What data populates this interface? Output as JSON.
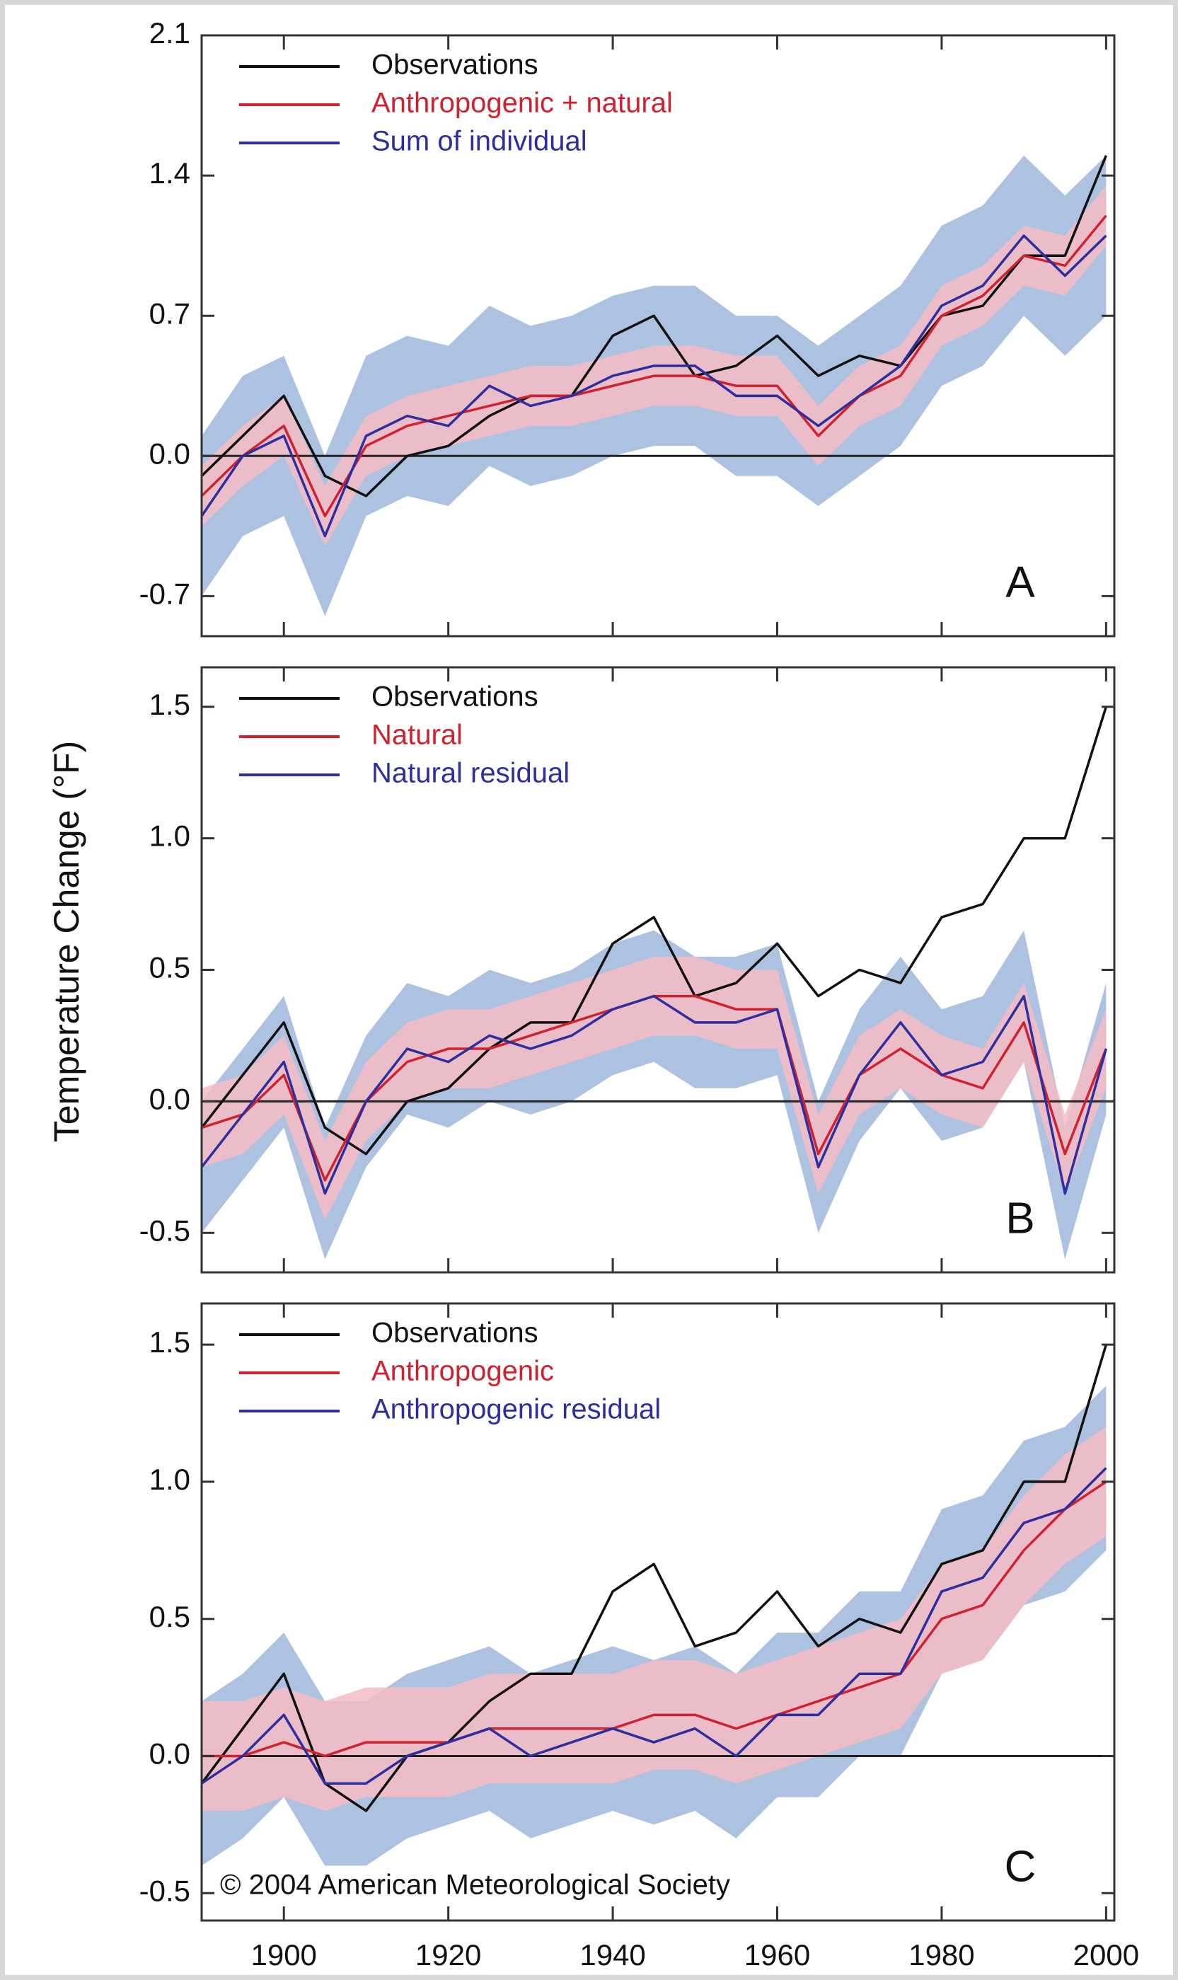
{
  "chart_data": [
    {
      "type": "line",
      "panel_label": "A",
      "x": [
        1890,
        1895,
        1900,
        1905,
        1910,
        1915,
        1920,
        1925,
        1930,
        1935,
        1940,
        1945,
        1950,
        1955,
        1960,
        1965,
        1970,
        1975,
        1980,
        1985,
        1990,
        1995,
        2000
      ],
      "xlim": [
        1890,
        2001
      ],
      "ylim": [
        -0.9,
        2.1
      ],
      "yticks": [
        -0.7,
        {
          "value": 0,
          "label": "0.0"
        },
        0.7,
        1.4,
        2.1
      ],
      "bands": [
        {
          "color": "#9fb6da",
          "lower": [
            -0.7,
            -0.4,
            -0.3,
            -0.8,
            -0.3,
            -0.2,
            -0.25,
            -0.05,
            -0.15,
            -0.1,
            0.0,
            0.05,
            0.05,
            -0.1,
            -0.1,
            -0.25,
            -0.1,
            0.05,
            0.35,
            0.45,
            0.7,
            0.5,
            0.7
          ],
          "upper": [
            0.1,
            0.4,
            0.5,
            0.0,
            0.5,
            0.6,
            0.55,
            0.75,
            0.65,
            0.7,
            0.8,
            0.85,
            0.85,
            0.7,
            0.7,
            0.55,
            0.7,
            0.85,
            1.15,
            1.25,
            1.5,
            1.3,
            1.5
          ]
        },
        {
          "color": "#f4bcc4",
          "lower": [
            -0.35,
            -0.15,
            0.0,
            -0.45,
            -0.1,
            0.0,
            0.05,
            0.1,
            0.15,
            0.15,
            0.2,
            0.25,
            0.25,
            0.2,
            0.2,
            -0.05,
            0.15,
            0.25,
            0.55,
            0.65,
            0.85,
            0.8,
            1.05
          ],
          "upper": [
            -0.05,
            0.15,
            0.3,
            -0.15,
            0.2,
            0.3,
            0.35,
            0.4,
            0.45,
            0.45,
            0.5,
            0.55,
            0.55,
            0.5,
            0.5,
            0.25,
            0.45,
            0.55,
            0.85,
            0.95,
            1.15,
            1.1,
            1.35
          ]
        }
      ],
      "series": [
        {
          "name": "Observations",
          "color": "#111111",
          "values": [
            -0.1,
            0.1,
            0.3,
            -0.1,
            -0.2,
            0.0,
            0.05,
            0.2,
            0.3,
            0.3,
            0.6,
            0.7,
            0.4,
            0.45,
            0.6,
            0.4,
            0.5,
            0.45,
            0.7,
            0.75,
            1.0,
            1.0,
            1.5
          ]
        },
        {
          "name": "Anthropogenic + natural",
          "color": "#d0222e",
          "values": [
            -0.2,
            0.0,
            0.15,
            -0.3,
            0.05,
            0.15,
            0.2,
            0.25,
            0.3,
            0.3,
            0.35,
            0.4,
            0.4,
            0.35,
            0.35,
            0.1,
            0.3,
            0.4,
            0.7,
            0.8,
            1.0,
            0.95,
            1.2
          ]
        },
        {
          "name": "Sum of individual",
          "color": "#2e2e9e",
          "values": [
            -0.3,
            0.0,
            0.1,
            -0.4,
            0.1,
            0.2,
            0.15,
            0.35,
            0.25,
            0.3,
            0.4,
            0.45,
            0.45,
            0.3,
            0.3,
            0.15,
            0.3,
            0.45,
            0.75,
            0.85,
            1.1,
            0.9,
            1.1
          ]
        }
      ]
    },
    {
      "type": "line",
      "panel_label": "B",
      "ylabel": "Temperature Change (°F)",
      "x": [
        1890,
        1895,
        1900,
        1905,
        1910,
        1915,
        1920,
        1925,
        1930,
        1935,
        1940,
        1945,
        1950,
        1955,
        1960,
        1965,
        1970,
        1975,
        1980,
        1985,
        1990,
        1995,
        2000
      ],
      "xlim": [
        1890,
        2001
      ],
      "ylim": [
        -0.65,
        1.65
      ],
      "yticks": [
        -0.5,
        {
          "value": 0,
          "label": "0.0"
        },
        0.5,
        {
          "value": 1,
          "label": "1.0"
        },
        1.5
      ],
      "bands": [
        {
          "color": "#9fb6da",
          "lower": [
            -0.5,
            -0.3,
            -0.1,
            -0.6,
            -0.25,
            -0.05,
            -0.1,
            0.0,
            -0.05,
            0.0,
            0.1,
            0.15,
            0.05,
            0.05,
            0.1,
            -0.5,
            -0.15,
            0.05,
            -0.15,
            -0.1,
            0.15,
            -0.6,
            -0.05
          ],
          "upper": [
            0.0,
            0.2,
            0.4,
            -0.1,
            0.25,
            0.45,
            0.4,
            0.5,
            0.45,
            0.5,
            0.6,
            0.65,
            0.55,
            0.55,
            0.6,
            0.0,
            0.35,
            0.55,
            0.35,
            0.4,
            0.65,
            -0.1,
            0.45
          ]
        },
        {
          "color": "#f4bcc4",
          "lower": [
            -0.25,
            -0.2,
            -0.05,
            -0.45,
            -0.15,
            0.0,
            0.05,
            0.05,
            0.1,
            0.15,
            0.2,
            0.25,
            0.25,
            0.2,
            0.2,
            -0.35,
            -0.05,
            0.05,
            -0.05,
            -0.1,
            0.15,
            -0.35,
            0.05
          ],
          "upper": [
            0.05,
            0.1,
            0.25,
            -0.15,
            0.15,
            0.3,
            0.35,
            0.35,
            0.4,
            0.45,
            0.5,
            0.55,
            0.55,
            0.5,
            0.5,
            -0.05,
            0.25,
            0.35,
            0.25,
            0.2,
            0.45,
            -0.05,
            0.35
          ]
        }
      ],
      "series": [
        {
          "name": "Observations",
          "color": "#111111",
          "values": [
            -0.1,
            0.1,
            0.3,
            -0.1,
            -0.2,
            0.0,
            0.05,
            0.2,
            0.3,
            0.3,
            0.6,
            0.7,
            0.4,
            0.45,
            0.6,
            0.4,
            0.5,
            0.45,
            0.7,
            0.75,
            1.0,
            1.0,
            1.5
          ]
        },
        {
          "name": "Natural",
          "color": "#d0222e",
          "values": [
            -0.1,
            -0.05,
            0.1,
            -0.3,
            0.0,
            0.15,
            0.2,
            0.2,
            0.25,
            0.3,
            0.35,
            0.4,
            0.4,
            0.35,
            0.35,
            -0.2,
            0.1,
            0.2,
            0.1,
            0.05,
            0.3,
            -0.2,
            0.2
          ]
        },
        {
          "name": "Natural residual",
          "color": "#2e2e9e",
          "values": [
            -0.25,
            -0.05,
            0.15,
            -0.35,
            0.0,
            0.2,
            0.15,
            0.25,
            0.2,
            0.25,
            0.35,
            0.4,
            0.3,
            0.3,
            0.35,
            -0.25,
            0.1,
            0.3,
            0.1,
            0.15,
            0.4,
            -0.35,
            0.2
          ]
        }
      ]
    },
    {
      "type": "line",
      "panel_label": "C",
      "annotation": "© 2004 American Meteorological Society",
      "x": [
        1890,
        1895,
        1900,
        1905,
        1910,
        1915,
        1920,
        1925,
        1930,
        1935,
        1940,
        1945,
        1950,
        1955,
        1960,
        1965,
        1970,
        1975,
        1980,
        1985,
        1990,
        1995,
        2000
      ],
      "xlim": [
        1890,
        2001
      ],
      "xticks": [
        1900,
        1920,
        1940,
        1960,
        1980,
        2000
      ],
      "ylim": [
        -0.6,
        1.65
      ],
      "yticks": [
        -0.5,
        {
          "value": 0,
          "label": "0.0"
        },
        0.5,
        {
          "value": 1,
          "label": "1.0"
        },
        1.5
      ],
      "bands": [
        {
          "color": "#9fb6da",
          "lower": [
            -0.4,
            -0.3,
            -0.15,
            -0.4,
            -0.4,
            -0.3,
            -0.25,
            -0.2,
            -0.3,
            -0.25,
            -0.2,
            -0.25,
            -0.2,
            -0.3,
            -0.15,
            -0.15,
            0.0,
            0.0,
            0.3,
            0.35,
            0.55,
            0.6,
            0.75
          ],
          "upper": [
            0.2,
            0.3,
            0.45,
            0.2,
            0.2,
            0.3,
            0.35,
            0.4,
            0.3,
            0.35,
            0.4,
            0.35,
            0.4,
            0.3,
            0.45,
            0.45,
            0.6,
            0.6,
            0.9,
            0.95,
            1.15,
            1.2,
            1.35
          ]
        },
        {
          "color": "#f4bcc4",
          "lower": [
            -0.2,
            -0.2,
            -0.15,
            -0.2,
            -0.15,
            -0.15,
            -0.15,
            -0.1,
            -0.1,
            -0.1,
            -0.1,
            -0.05,
            -0.05,
            -0.1,
            -0.05,
            0.0,
            0.05,
            0.1,
            0.3,
            0.35,
            0.55,
            0.7,
            0.8
          ],
          "upper": [
            0.2,
            0.2,
            0.25,
            0.2,
            0.25,
            0.25,
            0.25,
            0.3,
            0.3,
            0.3,
            0.3,
            0.35,
            0.35,
            0.3,
            0.35,
            0.4,
            0.45,
            0.5,
            0.7,
            0.75,
            0.95,
            1.1,
            1.2
          ]
        }
      ],
      "series": [
        {
          "name": "Observations",
          "color": "#111111",
          "values": [
            -0.1,
            0.1,
            0.3,
            -0.1,
            -0.2,
            0.0,
            0.05,
            0.2,
            0.3,
            0.3,
            0.6,
            0.7,
            0.4,
            0.45,
            0.6,
            0.4,
            0.5,
            0.45,
            0.7,
            0.75,
            1.0,
            1.0,
            1.5
          ]
        },
        {
          "name": "Anthropogenic",
          "color": "#d0222e",
          "values": [
            0.0,
            0.0,
            0.05,
            0.0,
            0.05,
            0.05,
            0.05,
            0.1,
            0.1,
            0.1,
            0.1,
            0.15,
            0.15,
            0.1,
            0.15,
            0.2,
            0.25,
            0.3,
            0.5,
            0.55,
            0.75,
            0.9,
            1.0
          ]
        },
        {
          "name": "Anthropogenic residual",
          "color": "#2e2e9e",
          "values": [
            -0.1,
            0.0,
            0.15,
            -0.1,
            -0.1,
            0.0,
            0.05,
            0.1,
            0.0,
            0.05,
            0.1,
            0.05,
            0.1,
            0.0,
            0.15,
            0.15,
            0.3,
            0.3,
            0.6,
            0.65,
            0.85,
            0.9,
            1.05
          ]
        }
      ]
    }
  ]
}
